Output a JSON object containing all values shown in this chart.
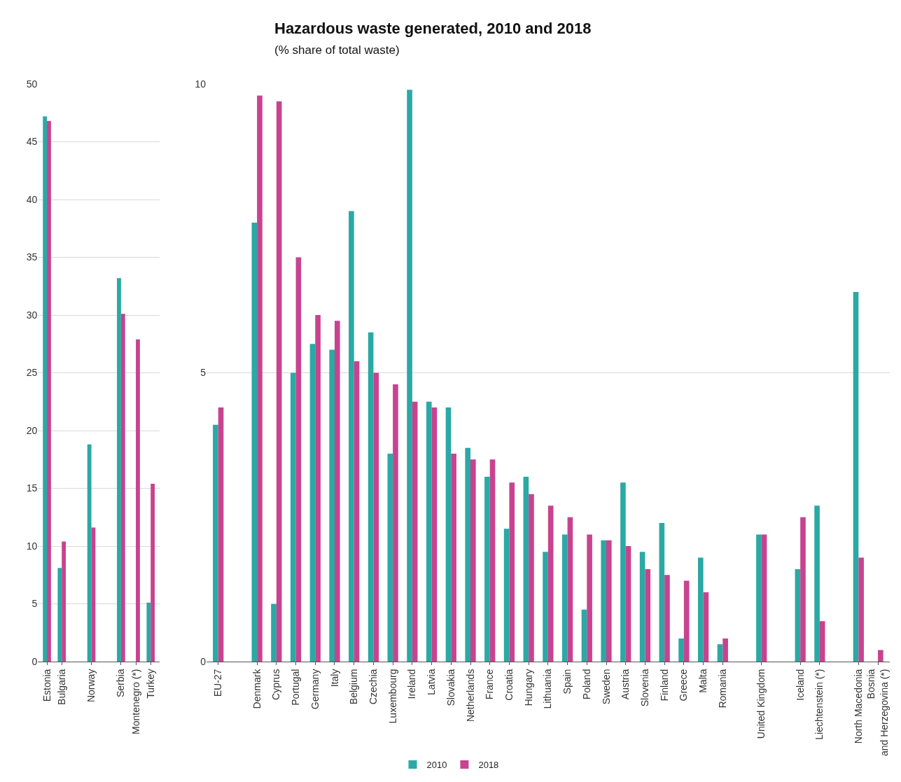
{
  "chart_data": [
    {
      "type": "bar",
      "categories": [
        "Estonia",
        "Bulgaria",
        null,
        "Norway",
        null,
        "Serbia",
        "Montenegro (*)",
        "Turkey"
      ],
      "series": [
        {
          "name": "2010",
          "color": "#2aa9a5",
          "values": [
            47.2,
            8.1,
            null,
            18.8,
            null,
            33.2,
            null,
            5.1
          ]
        },
        {
          "name": "2018",
          "color": "#c8438f",
          "values": [
            46.8,
            10.4,
            null,
            11.6,
            null,
            30.1,
            27.9,
            15.4
          ]
        }
      ],
      "ylim": [
        0,
        50
      ],
      "yticks": [
        0,
        5,
        10,
        15,
        20,
        25,
        30,
        35,
        40,
        45,
        50
      ],
      "grid": "y",
      "legend": "bottom"
    },
    {
      "type": "bar",
      "title": "Hazardous waste generated, 2010 and 2018",
      "subtitle": "(% share of total waste)",
      "categories": [
        "EU-27",
        null,
        "Denmark",
        "Cyprus",
        "Portugal",
        "Germany",
        "Italy",
        "Belgium",
        "Czechia",
        "Luxembourg",
        "Ireland",
        "Latvia",
        "Slovakia",
        "Netherlands",
        "France",
        "Croatia",
        "Hungary",
        "Lithuania",
        "Spain",
        "Poland",
        "Sweden",
        "Austria",
        "Slovenia",
        "Finland",
        "Greece",
        "Malta",
        "Romania",
        null,
        "United Kingdom",
        null,
        "Iceland",
        "Liechtenstein (*)",
        null,
        "North Macedonia",
        "Bosnia and Herzegovina (*)"
      ],
      "series": [
        {
          "name": "2010",
          "color": "#2aa9a5",
          "values": [
            4.1,
            null,
            7.6,
            1.0,
            5.0,
            5.5,
            5.4,
            7.8,
            5.7,
            3.6,
            9.9,
            4.5,
            4.4,
            3.7,
            3.2,
            2.3,
            3.2,
            1.9,
            2.2,
            0.9,
            2.1,
            3.1,
            1.9,
            2.4,
            0.4,
            1.8,
            0.3,
            null,
            2.2,
            null,
            1.6,
            2.7,
            null,
            6.4,
            null
          ]
        },
        {
          "name": "2018",
          "color": "#c8438f",
          "values": [
            4.4,
            null,
            9.8,
            9.7,
            7.0,
            6.0,
            5.9,
            5.2,
            5.0,
            4.8,
            4.5,
            4.4,
            3.6,
            3.5,
            3.5,
            3.1,
            2.9,
            2.7,
            2.5,
            2.2,
            2.1,
            2.0,
            1.6,
            1.5,
            1.4,
            1.2,
            0.4,
            null,
            2.2,
            null,
            2.5,
            0.7,
            null,
            1.8,
            0.2
          ]
        }
      ],
      "ylim": [
        0,
        10
      ],
      "yticks": [
        0,
        5,
        10
      ],
      "grid": "y"
    }
  ]
}
